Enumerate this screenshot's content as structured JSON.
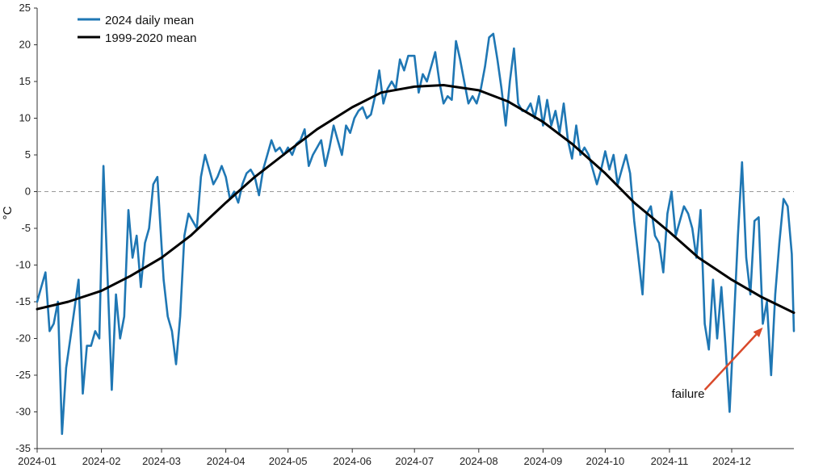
{
  "chart_data": {
    "type": "line",
    "title": "",
    "xlabel": "",
    "ylabel": "°C",
    "ylim": [
      -35,
      25
    ],
    "xlim": [
      "2024-01-01",
      "2024-12-31"
    ],
    "yticks": [
      "25",
      "20",
      "15",
      "10",
      "5",
      "0",
      "-5",
      "-10",
      "-15",
      "-20",
      "-25",
      "-30",
      "-35"
    ],
    "xticks": [
      "2024-01",
      "2024-02",
      "2024-03",
      "2024-04",
      "2024-05",
      "2024-06",
      "2024-07",
      "2024-08",
      "2024-09",
      "2024-10",
      "2024-11",
      "2024-12"
    ],
    "xtick_dates": [
      "2024-01-01",
      "2024-02-01",
      "2024-03-01",
      "2024-04-01",
      "2024-05-01",
      "2024-06-01",
      "2024-07-01",
      "2024-08-01",
      "2024-09-01",
      "2024-10-01",
      "2024-11-01",
      "2024-12-01"
    ],
    "zero_line": {
      "y": 0,
      "style": "dashed",
      "color": "#999999"
    },
    "legend": {
      "position": "top-left",
      "items": [
        "2024 daily mean",
        "1999-2020 mean"
      ]
    },
    "grid": false,
    "series": [
      {
        "name": "2024 daily mean",
        "color": "#1f77b4",
        "points": [
          [
            "2024-01-01",
            -15
          ],
          [
            "2024-01-03",
            -13
          ],
          [
            "2024-01-05",
            -11
          ],
          [
            "2024-01-07",
            -19
          ],
          [
            "2024-01-09",
            -18
          ],
          [
            "2024-01-11",
            -15
          ],
          [
            "2024-01-13",
            -33
          ],
          [
            "2024-01-15",
            -24
          ],
          [
            "2024-01-17",
            -20
          ],
          [
            "2024-01-19",
            -16
          ],
          [
            "2024-01-21",
            -12
          ],
          [
            "2024-01-23",
            -27.5
          ],
          [
            "2024-01-25",
            -21
          ],
          [
            "2024-01-27",
            -21
          ],
          [
            "2024-01-29",
            -19
          ],
          [
            "2024-01-31",
            -20
          ],
          [
            "2024-02-02",
            3.5
          ],
          [
            "2024-02-04",
            -12
          ],
          [
            "2024-02-06",
            -27
          ],
          [
            "2024-02-08",
            -14
          ],
          [
            "2024-02-10",
            -20
          ],
          [
            "2024-02-12",
            -17
          ],
          [
            "2024-02-14",
            -2.5
          ],
          [
            "2024-02-16",
            -9
          ],
          [
            "2024-02-18",
            -6
          ],
          [
            "2024-02-20",
            -13
          ],
          [
            "2024-02-22",
            -7
          ],
          [
            "2024-02-24",
            -5
          ],
          [
            "2024-02-26",
            1
          ],
          [
            "2024-02-28",
            2
          ],
          [
            "2024-03-02",
            -12
          ],
          [
            "2024-03-04",
            -17
          ],
          [
            "2024-03-06",
            -19
          ],
          [
            "2024-03-08",
            -23.5
          ],
          [
            "2024-03-10",
            -17
          ],
          [
            "2024-03-12",
            -6
          ],
          [
            "2024-03-14",
            -3
          ],
          [
            "2024-03-16",
            -4
          ],
          [
            "2024-03-18",
            -5
          ],
          [
            "2024-03-20",
            2
          ],
          [
            "2024-03-22",
            5
          ],
          [
            "2024-03-24",
            3
          ],
          [
            "2024-03-26",
            1
          ],
          [
            "2024-03-28",
            2
          ],
          [
            "2024-03-30",
            3.5
          ],
          [
            "2024-04-01",
            2
          ],
          [
            "2024-04-03",
            -1
          ],
          [
            "2024-04-05",
            0
          ],
          [
            "2024-04-07",
            -1.5
          ],
          [
            "2024-04-09",
            1
          ],
          [
            "2024-04-11",
            2.5
          ],
          [
            "2024-04-13",
            3
          ],
          [
            "2024-04-15",
            2
          ],
          [
            "2024-04-17",
            -0.5
          ],
          [
            "2024-04-19",
            3
          ],
          [
            "2024-04-21",
            5
          ],
          [
            "2024-04-23",
            7
          ],
          [
            "2024-04-25",
            5.5
          ],
          [
            "2024-04-27",
            6
          ],
          [
            "2024-04-29",
            5
          ],
          [
            "2024-05-01",
            6
          ],
          [
            "2024-05-03",
            5
          ],
          [
            "2024-05-05",
            6.5
          ],
          [
            "2024-05-07",
            7
          ],
          [
            "2024-05-09",
            8.5
          ],
          [
            "2024-05-11",
            3.5
          ],
          [
            "2024-05-13",
            5
          ],
          [
            "2024-05-15",
            6
          ],
          [
            "2024-05-17",
            7
          ],
          [
            "2024-05-19",
            3.5
          ],
          [
            "2024-05-21",
            6
          ],
          [
            "2024-05-23",
            9
          ],
          [
            "2024-05-25",
            7
          ],
          [
            "2024-05-27",
            5
          ],
          [
            "2024-05-29",
            9
          ],
          [
            "2024-05-31",
            8
          ],
          [
            "2024-06-02",
            10
          ],
          [
            "2024-06-04",
            11
          ],
          [
            "2024-06-06",
            11.5
          ],
          [
            "2024-06-08",
            10
          ],
          [
            "2024-06-10",
            10.5
          ],
          [
            "2024-06-12",
            13
          ],
          [
            "2024-06-14",
            16.5
          ],
          [
            "2024-06-16",
            12
          ],
          [
            "2024-06-18",
            14
          ],
          [
            "2024-06-20",
            15
          ],
          [
            "2024-06-22",
            14
          ],
          [
            "2024-06-24",
            18
          ],
          [
            "2024-06-26",
            16.5
          ],
          [
            "2024-06-28",
            18.5
          ],
          [
            "2024-07-01",
            18.5
          ],
          [
            "2024-07-03",
            13.5
          ],
          [
            "2024-07-05",
            16
          ],
          [
            "2024-07-07",
            15
          ],
          [
            "2024-07-09",
            17
          ],
          [
            "2024-07-11",
            19
          ],
          [
            "2024-07-13",
            15
          ],
          [
            "2024-07-15",
            12
          ],
          [
            "2024-07-17",
            13
          ],
          [
            "2024-07-19",
            12.5
          ],
          [
            "2024-07-21",
            20.5
          ],
          [
            "2024-07-23",
            18
          ],
          [
            "2024-07-25",
            15
          ],
          [
            "2024-07-27",
            12
          ],
          [
            "2024-07-29",
            13
          ],
          [
            "2024-07-31",
            12
          ],
          [
            "2024-08-02",
            14
          ],
          [
            "2024-08-04",
            17
          ],
          [
            "2024-08-06",
            21
          ],
          [
            "2024-08-08",
            21.5
          ],
          [
            "2024-08-10",
            18
          ],
          [
            "2024-08-12",
            14
          ],
          [
            "2024-08-14",
            9
          ],
          [
            "2024-08-16",
            15
          ],
          [
            "2024-08-18",
            19.5
          ],
          [
            "2024-08-20",
            12
          ],
          [
            "2024-08-22",
            11
          ],
          [
            "2024-08-24",
            11
          ],
          [
            "2024-08-26",
            12
          ],
          [
            "2024-08-28",
            10
          ],
          [
            "2024-08-30",
            13
          ],
          [
            "2024-09-01",
            9
          ],
          [
            "2024-09-03",
            12.5
          ],
          [
            "2024-09-05",
            9
          ],
          [
            "2024-09-07",
            11
          ],
          [
            "2024-09-09",
            8
          ],
          [
            "2024-09-11",
            12
          ],
          [
            "2024-09-13",
            7
          ],
          [
            "2024-09-15",
            4.5
          ],
          [
            "2024-09-17",
            9
          ],
          [
            "2024-09-19",
            5
          ],
          [
            "2024-09-21",
            6
          ],
          [
            "2024-09-23",
            5
          ],
          [
            "2024-09-25",
            3
          ],
          [
            "2024-09-27",
            1
          ],
          [
            "2024-09-29",
            3
          ],
          [
            "2024-10-01",
            5.5
          ],
          [
            "2024-10-03",
            3
          ],
          [
            "2024-10-05",
            5
          ],
          [
            "2024-10-07",
            1
          ],
          [
            "2024-10-09",
            3
          ],
          [
            "2024-10-11",
            5
          ],
          [
            "2024-10-13",
            2.5
          ],
          [
            "2024-10-15",
            -4
          ],
          [
            "2024-10-17",
            -9
          ],
          [
            "2024-10-19",
            -14
          ],
          [
            "2024-10-21",
            -3
          ],
          [
            "2024-10-23",
            -2
          ],
          [
            "2024-10-25",
            -6
          ],
          [
            "2024-10-27",
            -7
          ],
          [
            "2024-10-29",
            -11
          ],
          [
            "2024-10-31",
            -3
          ],
          [
            "2024-11-02",
            0
          ],
          [
            "2024-11-04",
            -6
          ],
          [
            "2024-11-06",
            -4
          ],
          [
            "2024-11-08",
            -2
          ],
          [
            "2024-11-10",
            -3
          ],
          [
            "2024-11-12",
            -5
          ],
          [
            "2024-11-14",
            -9
          ],
          [
            "2024-11-16",
            -2.5
          ],
          [
            "2024-11-18",
            -18
          ],
          [
            "2024-11-20",
            -21.5
          ],
          [
            "2024-11-22",
            -12
          ],
          [
            "2024-11-24",
            -20
          ],
          [
            "2024-11-26",
            -13
          ],
          [
            "2024-11-28",
            -21
          ],
          [
            "2024-11-30",
            -30
          ],
          [
            "2024-12-02",
            -18
          ],
          [
            "2024-12-04",
            -6
          ],
          [
            "2024-12-06",
            4
          ],
          [
            "2024-12-08",
            -9
          ],
          [
            "2024-12-10",
            -14
          ],
          [
            "2024-12-12",
            -4
          ],
          [
            "2024-12-14",
            -3.5
          ],
          [
            "2024-12-16",
            -18
          ],
          [
            "2024-12-18",
            -15
          ],
          [
            "2024-12-20",
            -25
          ],
          [
            "2024-12-22",
            -14
          ],
          [
            "2024-12-24",
            -7
          ],
          [
            "2024-12-26",
            -1
          ],
          [
            "2024-12-28",
            -2
          ],
          [
            "2024-12-30",
            -8.5
          ],
          [
            "2024-12-31",
            -19
          ]
        ]
      },
      {
        "name": "1999-2020 mean",
        "color": "#000000",
        "points": [
          [
            "2024-01-01",
            -16
          ],
          [
            "2024-01-16",
            -15
          ],
          [
            "2024-02-01",
            -13.5
          ],
          [
            "2024-02-15",
            -11.5
          ],
          [
            "2024-03-01",
            -9
          ],
          [
            "2024-03-15",
            -6
          ],
          [
            "2024-04-01",
            -1.5
          ],
          [
            "2024-04-15",
            2
          ],
          [
            "2024-05-01",
            5.5
          ],
          [
            "2024-05-15",
            8.5
          ],
          [
            "2024-06-01",
            11.5
          ],
          [
            "2024-06-15",
            13.5
          ],
          [
            "2024-07-01",
            14.3
          ],
          [
            "2024-07-15",
            14.5
          ],
          [
            "2024-08-01",
            13.8
          ],
          [
            "2024-08-15",
            12.3
          ],
          [
            "2024-09-01",
            9.5
          ],
          [
            "2024-09-15",
            6.5
          ],
          [
            "2024-10-01",
            2.5
          ],
          [
            "2024-10-15",
            -1.5
          ],
          [
            "2024-11-01",
            -5.5
          ],
          [
            "2024-11-15",
            -9
          ],
          [
            "2024-12-01",
            -12
          ],
          [
            "2024-12-15",
            -14.3
          ],
          [
            "2024-12-31",
            -16.5
          ]
        ]
      }
    ],
    "annotations": [
      {
        "text": "failure",
        "color": "#d94a2b",
        "label_at": [
          "2024-11-10",
          -27.5
        ],
        "arrow_from": [
          "2024-11-18",
          -27
        ],
        "arrow_to": [
          "2024-12-16",
          -18.5
        ]
      }
    ]
  }
}
